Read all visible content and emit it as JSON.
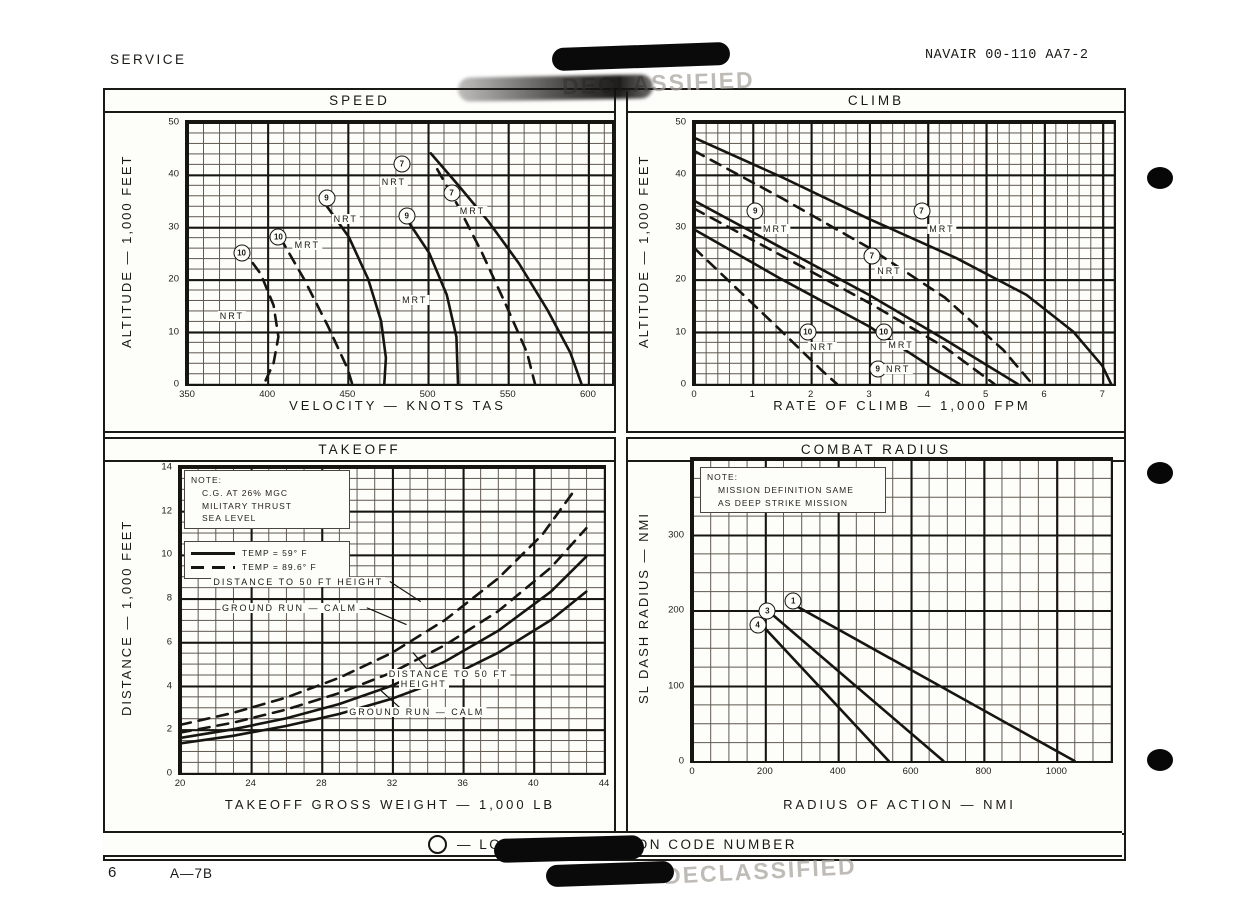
{
  "page": {
    "header_left": "SERVICE",
    "header_right": "NAVAIR 00-110 AA7-2",
    "page_number": "6",
    "aircraft_label": "A—7B",
    "legend_text": "— LOADING CONDITION CODE NUMBER",
    "stamp": "DECLASSIFIED",
    "ink_color": "#17150f",
    "paper_color": "#fdfdfa"
  },
  "chart_data": [
    {
      "type": "line",
      "title": "SPEED",
      "xlabel": "VELOCITY — KNOTS TAS",
      "ylabel": "ALTITUDE — 1,000 FEET",
      "xlim": [
        350,
        615
      ],
      "ylim": [
        0,
        50
      ],
      "grid": {
        "minor_x": 10,
        "major_x": 50,
        "minor_y": 2,
        "major_y": 10,
        "on": true
      },
      "xticks": [
        {
          "v": 350,
          "t": "350"
        },
        {
          "v": 400,
          "t": "400"
        },
        {
          "v": 450,
          "t": "450"
        },
        {
          "v": 500,
          "t": "500"
        },
        {
          "v": 550,
          "t": "550"
        },
        {
          "v": 600,
          "t": "600"
        }
      ],
      "yticks": [
        {
          "v": 0,
          "t": "0"
        },
        {
          "v": 10,
          "t": "10"
        },
        {
          "v": 20,
          "t": "20"
        },
        {
          "v": 30,
          "t": "30"
        },
        {
          "v": 40,
          "t": "40"
        },
        {
          "v": 50,
          "t": "50"
        }
      ],
      "series": [
        {
          "name": "10 NRT",
          "style": "dashed",
          "points": [
            [
              384,
              26
            ],
            [
              396,
              21
            ],
            [
              404,
              15
            ],
            [
              407,
              9
            ],
            [
              404,
              4
            ],
            [
              398,
              0
            ]
          ]
        },
        {
          "name": "10 MRT",
          "style": "dashed",
          "points": [
            [
              408,
              28
            ],
            [
              423,
              20
            ],
            [
              438,
              11
            ],
            [
              450,
              3
            ],
            [
              453,
              0
            ]
          ]
        },
        {
          "name": "9 NRT",
          "style": "solid",
          "points": [
            [
              437,
              34
            ],
            [
              451,
              28
            ],
            [
              463,
              20
            ],
            [
              471,
              12
            ],
            [
              474,
              5
            ],
            [
              473,
              0
            ]
          ]
        },
        {
          "name": "9 MRT",
          "style": "solid",
          "points": [
            [
              488,
              31
            ],
            [
              501,
              25
            ],
            [
              512,
              17
            ],
            [
              518,
              9
            ],
            [
              519,
              0
            ]
          ]
        },
        {
          "name": "7 NRT",
          "style": "dashed",
          "points": [
            [
              506,
              41
            ],
            [
              519,
              34
            ],
            [
              534,
              25
            ],
            [
              549,
              15
            ],
            [
              562,
              6
            ],
            [
              567,
              0
            ]
          ]
        },
        {
          "name": "7 MRT",
          "style": "solid",
          "points": [
            [
              502,
              44
            ],
            [
              519,
              38
            ],
            [
              538,
              31
            ],
            [
              557,
              23
            ],
            [
              575,
              14
            ],
            [
              589,
              6
            ],
            [
              596,
              0
            ]
          ]
        }
      ],
      "labels": [
        {
          "b": "10",
          "x": 384,
          "y": 25
        },
        {
          "b": "10",
          "x": 407,
          "y": 28
        },
        {
          "t": "MRT",
          "x": 425,
          "y": 26.5
        },
        {
          "t": "NRT",
          "x": 378,
          "y": 13
        },
        {
          "b": "9",
          "x": 437,
          "y": 35.5
        },
        {
          "t": "NRT",
          "x": 449,
          "y": 31.5
        },
        {
          "b": "9",
          "x": 487,
          "y": 32
        },
        {
          "t": "MRT",
          "x": 492,
          "y": 16
        },
        {
          "b": "7",
          "x": 484,
          "y": 42
        },
        {
          "t": "NRT",
          "x": 479,
          "y": 38.5
        },
        {
          "b": "7",
          "x": 515,
          "y": 36.5
        },
        {
          "t": "MRT",
          "x": 528,
          "y": 33
        }
      ]
    },
    {
      "type": "line",
      "title": "CLIMB",
      "xlabel": "RATE OF CLIMB — 1,000 FPM",
      "ylabel": "ALTITUDE — 1,000 FEET",
      "xlim": [
        0,
        7.2
      ],
      "ylim": [
        0,
        50
      ],
      "grid": {
        "minor_x": 0.2,
        "major_x": 1,
        "minor_y": 2,
        "major_y": 10,
        "on": true
      },
      "xticks": [
        {
          "v": 0,
          "t": "0"
        },
        {
          "v": 1,
          "t": "1"
        },
        {
          "v": 2,
          "t": "2"
        },
        {
          "v": 3,
          "t": "3"
        },
        {
          "v": 4,
          "t": "4"
        },
        {
          "v": 5,
          "t": "5"
        },
        {
          "v": 6,
          "t": "6"
        },
        {
          "v": 7,
          "t": "7"
        }
      ],
      "yticks": [
        {
          "v": 0,
          "t": "0"
        },
        {
          "v": 10,
          "t": "10"
        },
        {
          "v": 20,
          "t": "20"
        },
        {
          "v": 30,
          "t": "30"
        },
        {
          "v": 40,
          "t": "40"
        },
        {
          "v": 50,
          "t": "50"
        }
      ],
      "series": [
        {
          "name": "7 MRT",
          "style": "solid",
          "points": [
            [
              0,
              47
            ],
            [
              1.5,
              39.5
            ],
            [
              3,
              31.5
            ],
            [
              4.5,
              24
            ],
            [
              5.7,
              17
            ],
            [
              6.5,
              10
            ],
            [
              7.0,
              3.5
            ],
            [
              7.15,
              0
            ]
          ]
        },
        {
          "name": "7 NRT",
          "style": "dashed",
          "points": [
            [
              0,
              44.5
            ],
            [
              1.5,
              35.5
            ],
            [
              3,
              26
            ],
            [
              4.3,
              16.5
            ],
            [
              5.3,
              6.5
            ],
            [
              5.8,
              0
            ]
          ]
        },
        {
          "name": "9 MRT",
          "style": "solid",
          "points": [
            [
              0,
              35
            ],
            [
              1.5,
              26
            ],
            [
              3,
              17
            ],
            [
              4.3,
              8.5
            ],
            [
              5.55,
              0
            ]
          ]
        },
        {
          "name": "10 MRT",
          "style": "dashed",
          "points": [
            [
              0,
              33.5
            ],
            [
              1.5,
              24.5
            ],
            [
              3,
              15.5
            ],
            [
              4.3,
              7
            ],
            [
              5.15,
              0
            ]
          ]
        },
        {
          "name": "9 NRT",
          "style": "solid",
          "points": [
            [
              0,
              29.5
            ],
            [
              1.5,
              20
            ],
            [
              3,
              11
            ],
            [
              4.1,
              3
            ],
            [
              4.55,
              0
            ]
          ]
        },
        {
          "name": "10 NRT",
          "style": "dashed",
          "points": [
            [
              0,
              26
            ],
            [
              0.8,
              17.5
            ],
            [
              1.6,
              9
            ],
            [
              2.2,
              2.5
            ],
            [
              2.45,
              0
            ]
          ]
        }
      ],
      "labels": [
        {
          "b": "9",
          "x": 1.05,
          "y": 33
        },
        {
          "t": "MRT",
          "x": 1.4,
          "y": 29.5
        },
        {
          "b": "7",
          "x": 3.9,
          "y": 33
        },
        {
          "t": "MRT",
          "x": 4.25,
          "y": 29.5
        },
        {
          "b": "7",
          "x": 3.05,
          "y": 24.5
        },
        {
          "t": "NRT",
          "x": 3.35,
          "y": 21.5
        },
        {
          "b": "10",
          "x": 1.95,
          "y": 10
        },
        {
          "t": "NRT",
          "x": 2.2,
          "y": 7
        },
        {
          "b": "10",
          "x": 3.25,
          "y": 10
        },
        {
          "t": "MRT",
          "x": 3.55,
          "y": 7.5
        },
        {
          "b": "9",
          "x": 3.15,
          "y": 2.8
        },
        {
          "t": "NRT",
          "x": 3.5,
          "y": 2.8
        }
      ]
    },
    {
      "type": "line",
      "title": "TAKEOFF",
      "xlabel": "TAKEOFF GROSS WEIGHT — 1,000 LB",
      "ylabel": "DISTANCE — 1,000 FEET",
      "xlim": [
        20,
        44
      ],
      "ylim": [
        0,
        14
      ],
      "grid": {
        "minor_x": 1,
        "major_x": 4,
        "minor_y": 0.5,
        "major_y": 2,
        "on": true
      },
      "note": [
        "NOTE:",
        "C.G. AT 26% MGC",
        "MILITARY THRUST",
        "SEA LEVEL"
      ],
      "legend_items": [
        {
          "style": "solid",
          "label": "TEMP = 59° F"
        },
        {
          "style": "dashed",
          "label": "TEMP = 89.6° F"
        }
      ],
      "xticks": [
        {
          "v": 20,
          "t": "20"
        },
        {
          "v": 24,
          "t": "24"
        },
        {
          "v": 28,
          "t": "28"
        },
        {
          "v": 32,
          "t": "32"
        },
        {
          "v": 36,
          "t": "36"
        },
        {
          "v": 40,
          "t": "40"
        },
        {
          "v": 44,
          "t": "44"
        }
      ],
      "yticks": [
        {
          "v": 0,
          "t": "0"
        },
        {
          "v": 2,
          "t": "2"
        },
        {
          "v": 4,
          "t": "4"
        },
        {
          "v": 6,
          "t": "6"
        },
        {
          "v": 8,
          "t": "8"
        },
        {
          "v": 10,
          "t": "10"
        },
        {
          "v": 12,
          "t": "12"
        },
        {
          "v": 14,
          "t": "14"
        }
      ],
      "series": [
        {
          "name": "DISTANCE TO 50 FT HEIGHT — 89.6F",
          "style": "dashed",
          "points": [
            [
              20,
              2.2
            ],
            [
              23,
              2.75
            ],
            [
              26,
              3.45
            ],
            [
              29,
              4.35
            ],
            [
              32,
              5.5
            ],
            [
              35,
              7.0
            ],
            [
              38,
              8.9
            ],
            [
              40.5,
              10.9
            ],
            [
              42.3,
              12.9
            ]
          ]
        },
        {
          "name": "GROUND RUN CALM — 89.6F",
          "style": "dashed",
          "points": [
            [
              20,
              1.85
            ],
            [
              23,
              2.3
            ],
            [
              26,
              2.9
            ],
            [
              29,
              3.65
            ],
            [
              32,
              4.6
            ],
            [
              35,
              5.85
            ],
            [
              38,
              7.4
            ],
            [
              41,
              9.4
            ],
            [
              43,
              11.2
            ]
          ]
        },
        {
          "name": "DISTANCE TO 50 FT HEIGHT — 59F",
          "style": "solid",
          "points": [
            [
              20,
              1.6
            ],
            [
              23,
              2.0
            ],
            [
              26,
              2.5
            ],
            [
              29,
              3.15
            ],
            [
              32,
              4.0
            ],
            [
              35,
              5.1
            ],
            [
              38,
              6.5
            ],
            [
              41,
              8.3
            ],
            [
              43,
              9.9
            ]
          ]
        },
        {
          "name": "GROUND RUN CALM — 59F",
          "style": "solid",
          "points": [
            [
              20,
              1.35
            ],
            [
              23,
              1.7
            ],
            [
              26,
              2.15
            ],
            [
              29,
              2.7
            ],
            [
              32,
              3.4
            ],
            [
              35,
              4.3
            ],
            [
              38,
              5.5
            ],
            [
              41,
              7.0
            ],
            [
              43,
              8.3
            ]
          ]
        },
        {
          "name": "leader-1",
          "style": "thin",
          "points": [
            [
              31.9,
              8.75
            ],
            [
              33.6,
              7.85
            ]
          ]
        },
        {
          "name": "leader-2",
          "style": "thin",
          "points": [
            [
              30.6,
              7.55
            ],
            [
              32.8,
              6.8
            ]
          ]
        },
        {
          "name": "leader-3",
          "style": "thin",
          "points": [
            [
              34.2,
              4.55
            ],
            [
              33.2,
              5.5
            ]
          ]
        },
        {
          "name": "leader-4",
          "style": "thin",
          "points": [
            [
              32.7,
              2.8
            ],
            [
              31.4,
              3.75
            ]
          ]
        }
      ],
      "labels": [
        {
          "t": "DISTANCE TO 50 FT HEIGHT",
          "x": 26.7,
          "y": 8.75
        },
        {
          "t": "GROUND RUN — CALM",
          "x": 26.2,
          "y": 7.55
        },
        {
          "t": "DISTANCE TO 50 FT",
          "x": 35.2,
          "y": 4.55
        },
        {
          "t": "HEIGHT",
          "x": 33.8,
          "y": 4.05
        },
        {
          "t": "GROUND RUN — CALM",
          "x": 33.4,
          "y": 2.8
        }
      ]
    },
    {
      "type": "line",
      "title": "COMBAT RADIUS",
      "xlabel": "RADIUS OF ACTION — NMI",
      "ylabel": "SL DASH RADIUS — NMI",
      "xlim": [
        0,
        1150
      ],
      "ylim": [
        0,
        400
      ],
      "grid": {
        "minor_x": 50,
        "major_x": 200,
        "minor_y": 25,
        "major_y": 100,
        "on": true
      },
      "note": [
        "NOTE:",
        "MISSION DEFINITION SAME",
        "AS DEEP STRIKE MISSION"
      ],
      "xticks": [
        {
          "v": 0,
          "t": "0"
        },
        {
          "v": 200,
          "t": "200"
        },
        {
          "v": 400,
          "t": "400"
        },
        {
          "v": 600,
          "t": "600"
        },
        {
          "v": 800,
          "t": "800"
        },
        {
          "v": 1000,
          "t": "1000"
        }
      ],
      "yticks": [
        {
          "v": 0,
          "t": "0"
        },
        {
          "v": 100,
          "t": "100"
        },
        {
          "v": 200,
          "t": "200"
        },
        {
          "v": 300,
          "t": "300"
        }
      ],
      "series": [
        {
          "name": "1",
          "style": "solid",
          "points": [
            [
              287,
              205
            ],
            [
              1050,
              0
            ]
          ]
        },
        {
          "name": "3",
          "style": "solid",
          "points": [
            [
              218,
              195
            ],
            [
              690,
              0
            ]
          ]
        },
        {
          "name": "4",
          "style": "solid",
          "points": [
            [
              196,
              178
            ],
            [
              540,
              0
            ]
          ]
        }
      ],
      "labels": [
        {
          "b": "1",
          "x": 278,
          "y": 212
        },
        {
          "b": "3",
          "x": 207,
          "y": 199
        },
        {
          "b": "4",
          "x": 180,
          "y": 180
        }
      ]
    }
  ]
}
